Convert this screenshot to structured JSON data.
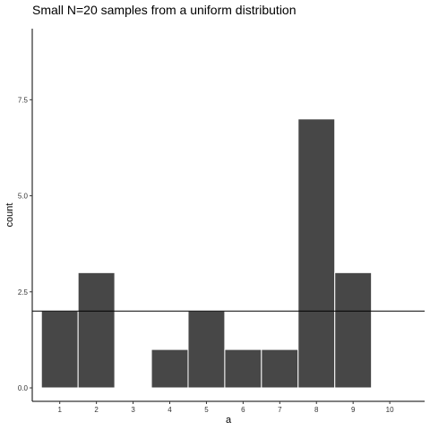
{
  "chart_data": {
    "type": "bar",
    "title": "Small N=20 samples from a uniform distribution",
    "xlabel": "a",
    "ylabel": "count",
    "x": [
      1,
      2,
      3,
      4,
      5,
      6,
      7,
      8,
      9,
      10
    ],
    "values": [
      2,
      3,
      0,
      1,
      2,
      1,
      1,
      7,
      3,
      0
    ],
    "xlim": [
      0.25,
      10.95
    ],
    "ylim": [
      -0.35,
      9.35
    ],
    "x_ticks": [
      "1",
      "2",
      "3",
      "4",
      "5",
      "6",
      "7",
      "8",
      "9",
      "10"
    ],
    "y_ticks": [
      0,
      2.5,
      5,
      7.5
    ],
    "y_tick_labels": [
      "0.0",
      "2.5",
      "5.0",
      "7.5"
    ],
    "hline": 2,
    "bar_color": "#474747",
    "bar_edge_color": "#ffffff",
    "line_color": "#000000",
    "grid": false,
    "legend": "none"
  }
}
